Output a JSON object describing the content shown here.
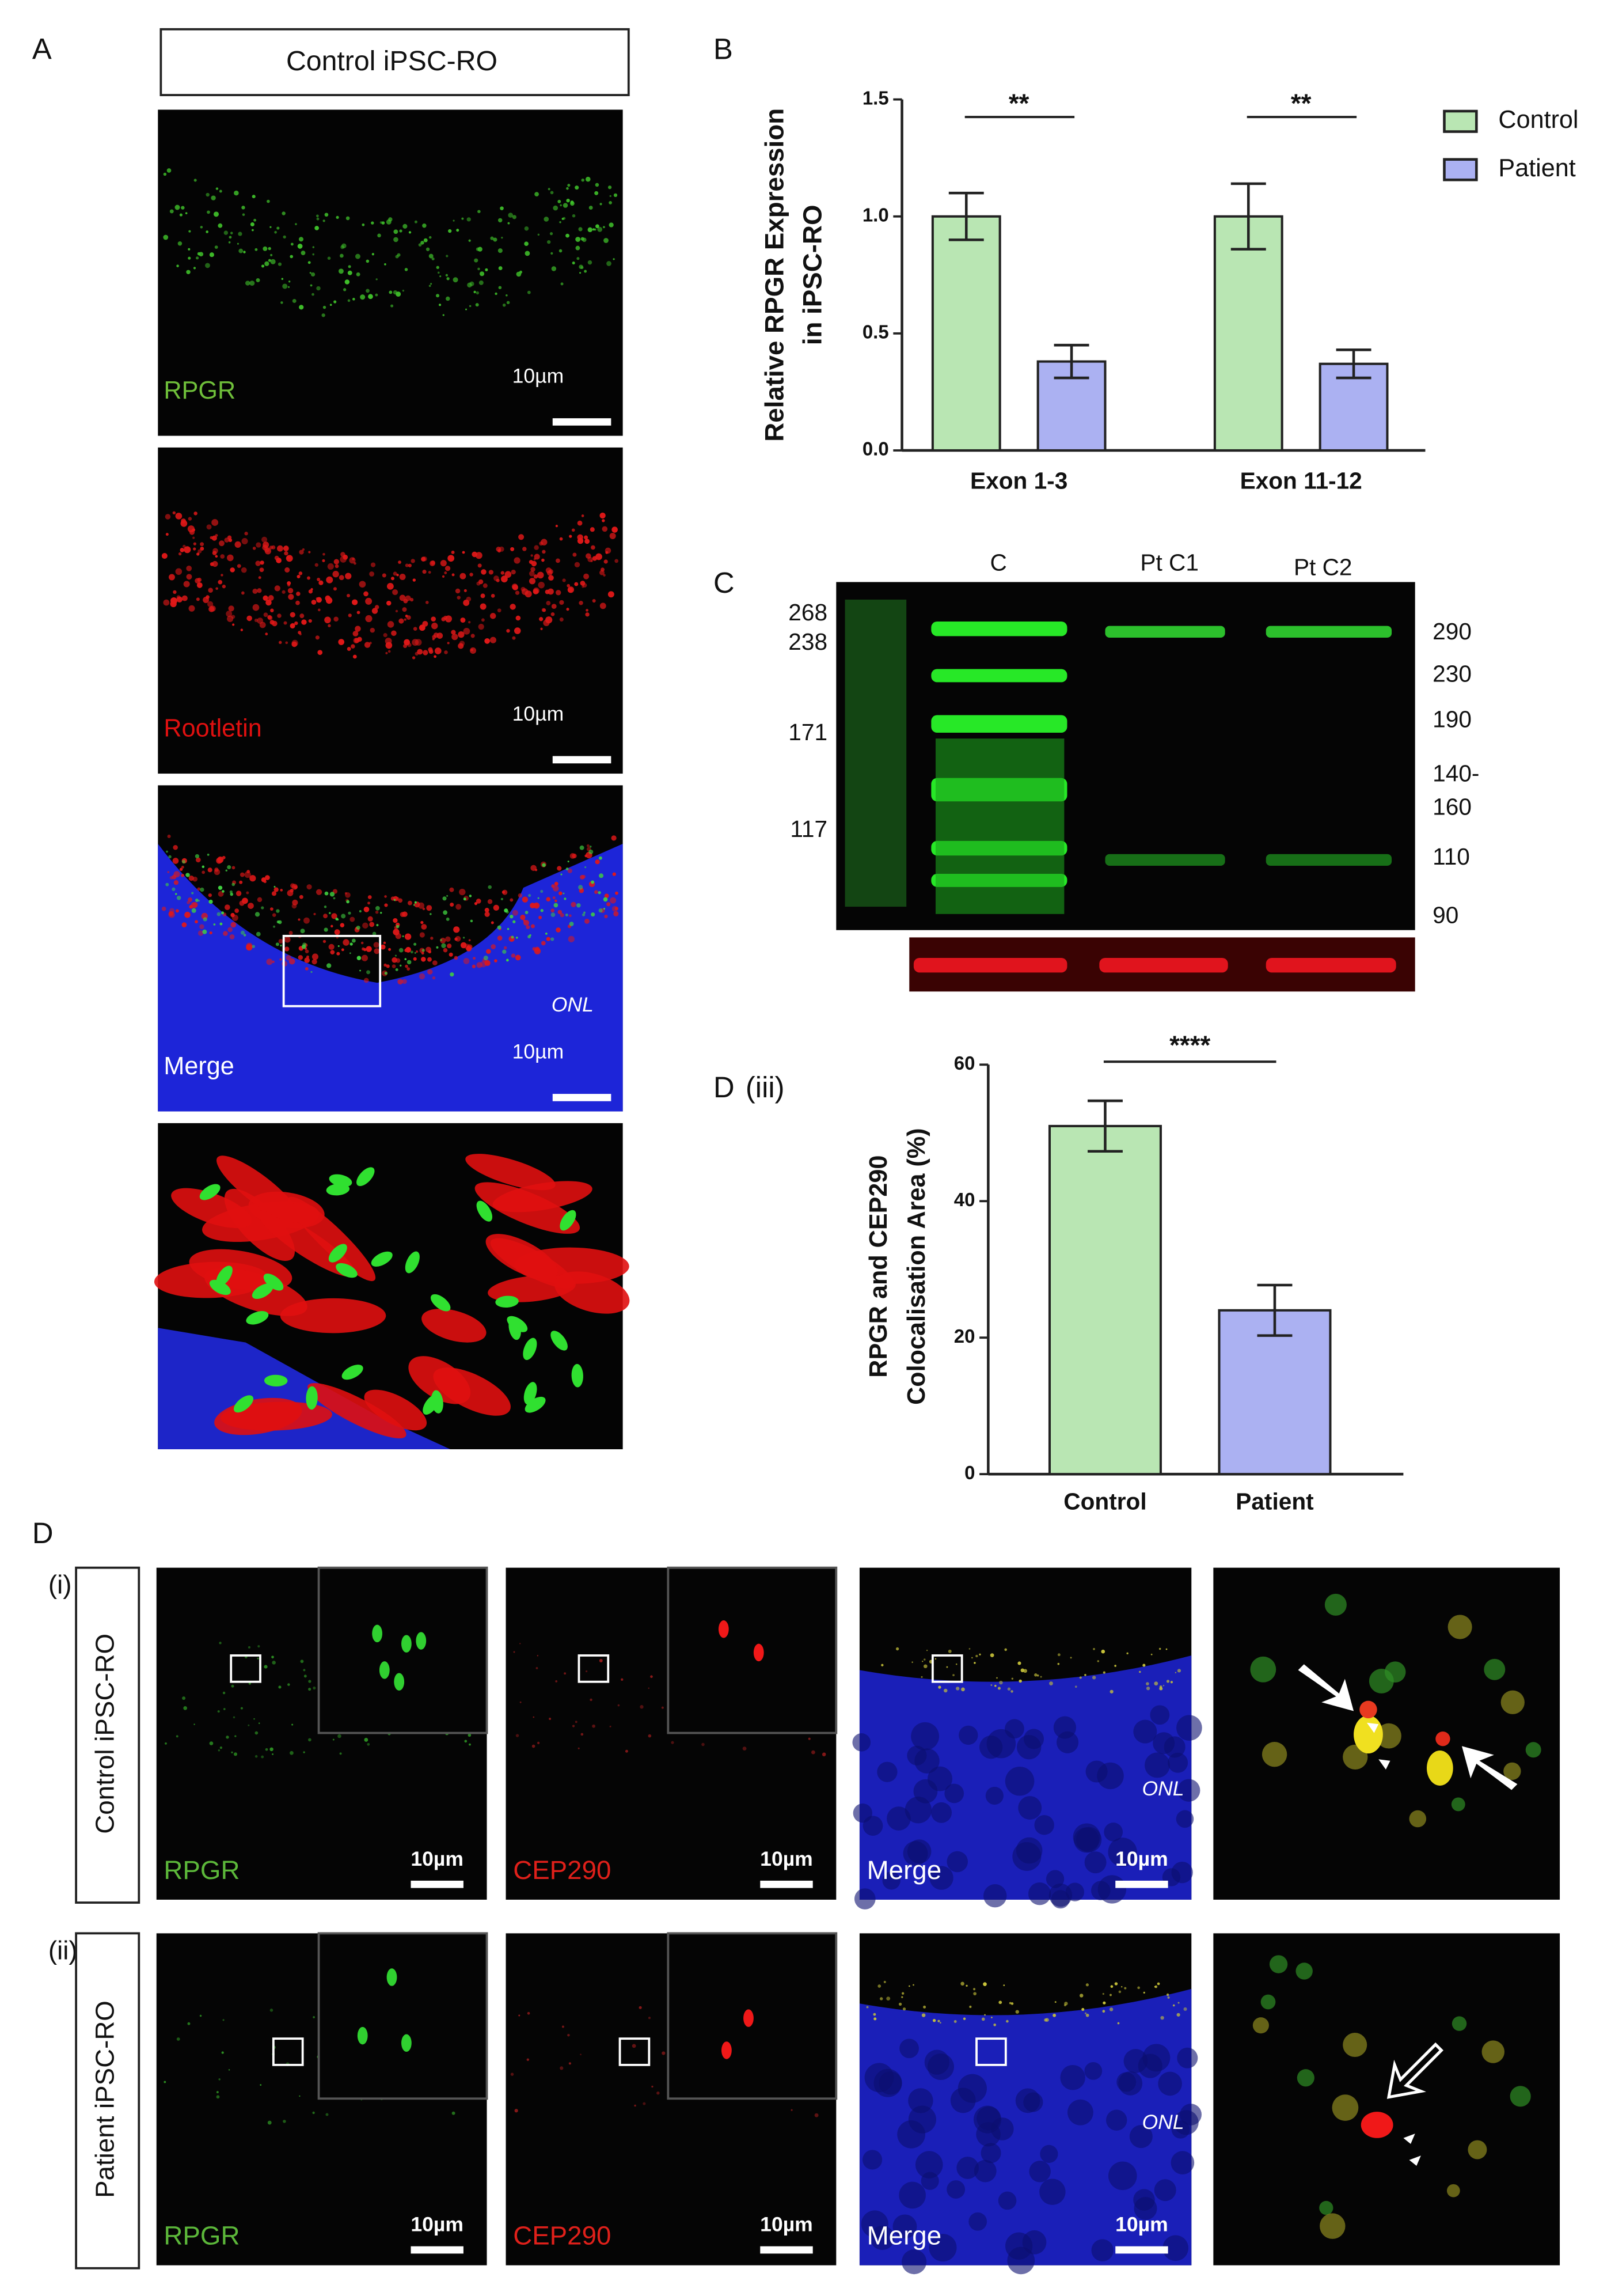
{
  "panel_a": {
    "label": "A",
    "title": "Control iPSC-RO",
    "images": [
      {
        "label": "RPGR",
        "scale": "10µm"
      },
      {
        "label": "Rootletin",
        "scale": "10µm"
      },
      {
        "label": "Merge",
        "scale": "10µm",
        "region": "ONL"
      }
    ]
  },
  "chart_data": [
    {
      "type": "bar",
      "panel": "B",
      "y_label": [
        "Relative RPGR Expression",
        "in iPSC-RO"
      ],
      "categories": [
        "Exon 1-3",
        "Exon 11-12"
      ],
      "series": [
        {
          "name": "Control",
          "color": "#b9e6b3",
          "values": [
            1.0,
            1.0
          ],
          "errors": [
            0.1,
            0.14
          ]
        },
        {
          "name": "Patient",
          "color": "#abb1f2",
          "values": [
            0.38,
            0.37
          ],
          "errors": [
            0.07,
            0.06
          ]
        }
      ],
      "annotations": [
        "**",
        "**"
      ],
      "ylim": [
        0,
        1.5
      ],
      "yticks": [
        {
          "value": 0,
          "label": "0.0"
        },
        0.5,
        {
          "value": 1,
          "label": "1.0"
        },
        1.5
      ],
      "legend": "right"
    },
    {
      "type": "bar",
      "panel": "D",
      "subpanel": "(iii)",
      "y_label": [
        "RPGR and CEP290",
        "Colocalisation Area (%)"
      ],
      "categories": [
        "Control",
        "Patient"
      ],
      "values": [
        51,
        24
      ],
      "errors": [
        3.7,
        3.7
      ],
      "colors": [
        "#b9e6b3",
        "#abb1f2"
      ],
      "annotation": "****",
      "ylim": [
        0,
        60
      ],
      "yticks": [
        0,
        20,
        40,
        60
      ]
    }
  ],
  "panel_c": {
    "label": "C",
    "lanes": [
      "C",
      "Pt C1",
      "Pt C2"
    ],
    "left_markers": [
      "268",
      "238",
      "171",
      "117"
    ],
    "right_markers": [
      "290",
      "230",
      "190",
      "140-",
      "160",
      "110",
      "90"
    ]
  },
  "panel_d": {
    "label": "D",
    "rows": [
      {
        "label": "(i)",
        "group": "Control iPSC-RO",
        "images": [
          {
            "label": "RPGR",
            "scale": "10µm"
          },
          {
            "label": "CEP290",
            "scale": "10µm"
          },
          {
            "label": "Merge",
            "scale": "10µm",
            "region": "ONL"
          }
        ]
      },
      {
        "label": "(ii)",
        "group": "Patient iPSC-RO",
        "images": [
          {
            "label": "RPGR",
            "scale": "10µm"
          },
          {
            "label": "CEP290",
            "scale": "10µm"
          },
          {
            "label": "Merge",
            "scale": "10µm",
            "region": "ONL"
          }
        ]
      }
    ]
  }
}
